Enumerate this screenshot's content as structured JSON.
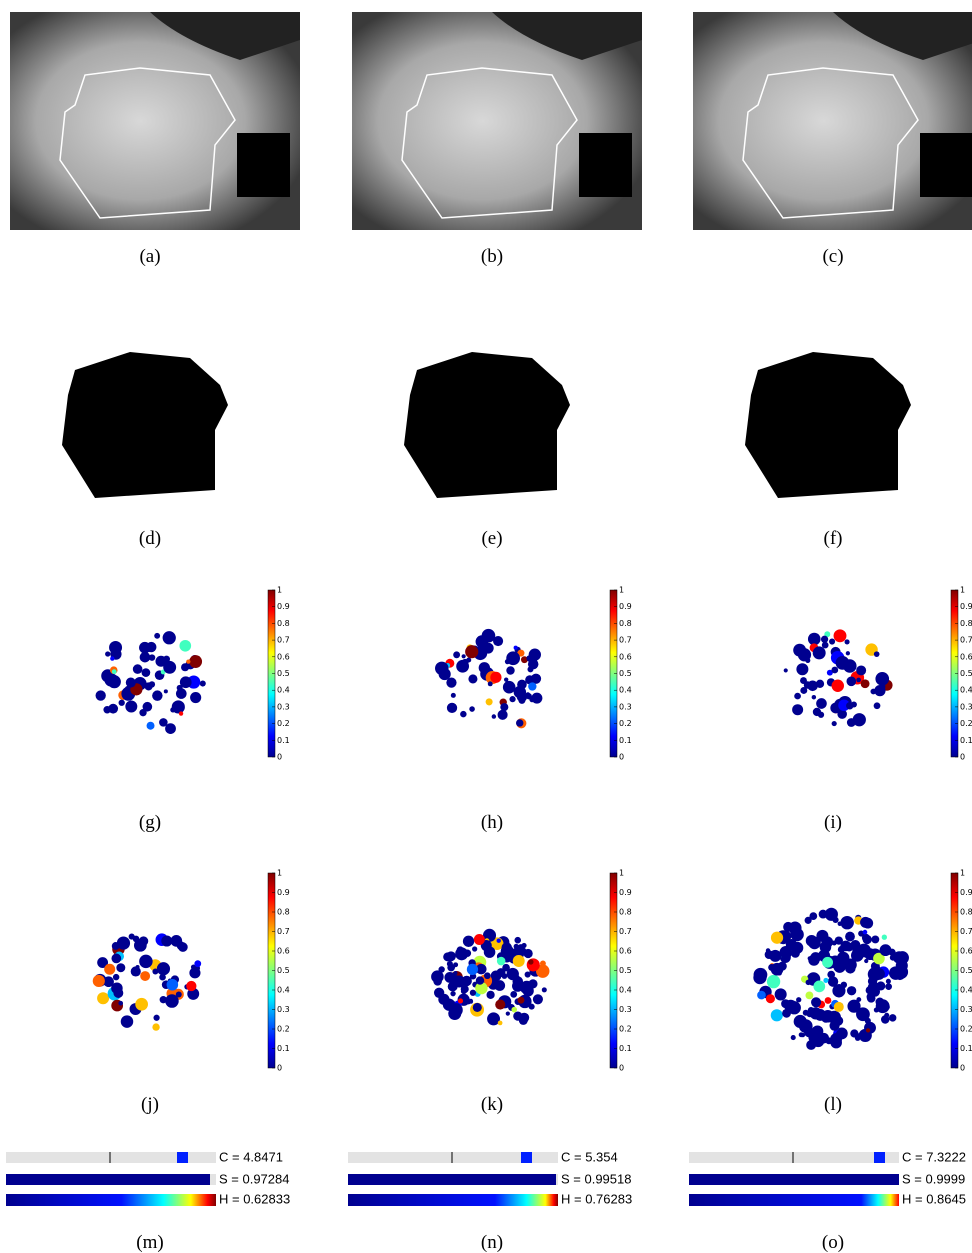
{
  "captions": [
    "(a)",
    "(b)",
    "(c)",
    "(d)",
    "(e)",
    "(f)",
    "(g)",
    "(h)",
    "(i)",
    "(j)",
    "(k)",
    "(l)",
    "(m)",
    "(n)",
    "(o)"
  ],
  "colorbar_ticks": [
    "0",
    "0.1",
    "0.2",
    "0.3",
    "0.4",
    "0.5",
    "0.6",
    "0.7",
    "0.8",
    "0.9",
    "1"
  ],
  "indices": [
    {
      "C": "C = 4.8471",
      "S": "S = 0.97284",
      "H": "H = 0.62833"
    },
    {
      "C": "C = 5.354",
      "S": "S = 0.99518",
      "H": "H = 0.76283"
    },
    {
      "C": "C = 7.3222",
      "S": "S = 0.9999",
      "H": "H = 0.8645"
    }
  ]
}
